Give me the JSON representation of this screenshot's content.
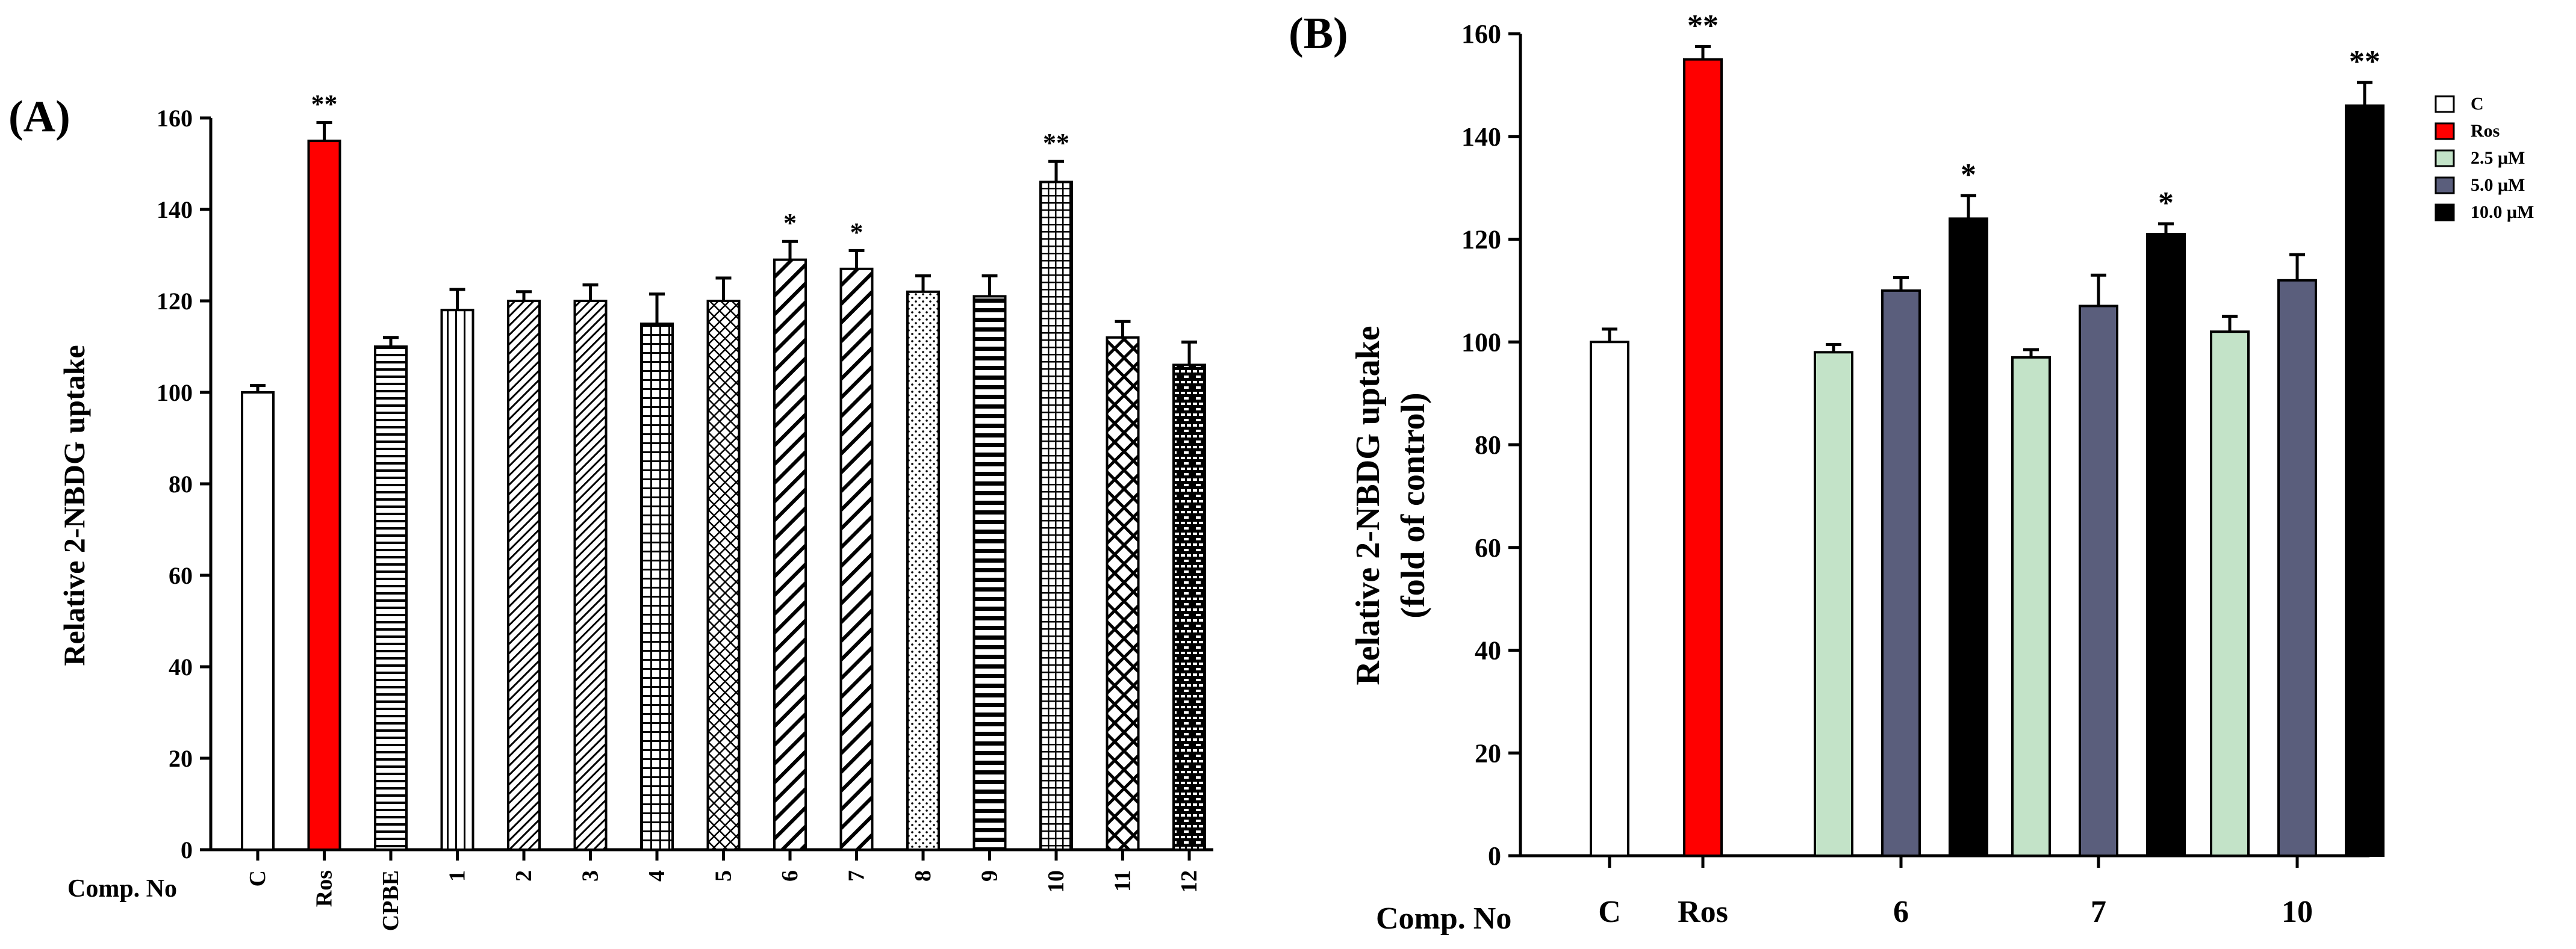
{
  "chart_data": [
    {
      "panel_label": "(A)",
      "type": "bar",
      "ylabel": "Relative 2-NBDG uptake",
      "xlabel": "Comp. No",
      "ylim": [
        0,
        160
      ],
      "yticks": [
        "0",
        "20",
        "40",
        "60",
        "80",
        "100",
        "120",
        "140",
        "160"
      ],
      "categories": [
        "C",
        "Ros",
        "CPBE",
        "1",
        "2",
        "3",
        "4",
        "5",
        "6",
        "7",
        "8",
        "9",
        "10",
        "11",
        "12"
      ],
      "values": [
        100,
        155,
        110,
        118,
        120,
        120,
        115,
        120,
        129,
        127,
        122,
        121,
        146,
        112,
        106
      ],
      "errors": [
        1.5,
        4,
        2,
        4.5,
        2,
        3.5,
        6.5,
        5,
        4,
        4,
        3.5,
        4.5,
        4.5,
        3.5,
        5
      ],
      "significance": [
        "",
        "**",
        "",
        "",
        "",
        "",
        "",
        "",
        "*",
        "*",
        "",
        "",
        "**",
        "",
        ""
      ],
      "fill_patterns": [
        "white",
        "red",
        "h-lines",
        "v-lines",
        "diag-fine",
        "diag-fine",
        "grid",
        "crosshatch",
        "diag-wide",
        "diag-wide",
        "dots",
        "h-thick",
        "grid-fine",
        "cross-x",
        "bricks"
      ]
    },
    {
      "panel_label": "(B)",
      "type": "bar",
      "ylabel": "Relative 2-NBDG uptake",
      "ylabel2": "(fold of control)",
      "xlabel": "Comp. No",
      "ylim": [
        0,
        160
      ],
      "yticks": [
        "0",
        "20",
        "40",
        "60",
        "80",
        "100",
        "120",
        "140",
        "160"
      ],
      "categories": [
        "C",
        "Ros",
        "6",
        "7",
        "10"
      ],
      "series": [
        {
          "name": "C",
          "color": "#ffffff",
          "values": [
            100,
            null,
            null,
            null,
            null
          ],
          "errors": [
            2.5,
            null,
            null,
            null,
            null
          ],
          "significance": [
            "",
            "",
            "",
            "",
            ""
          ]
        },
        {
          "name": "Ros",
          "color": "#ff0000",
          "values": [
            null,
            155,
            null,
            null,
            null
          ],
          "errors": [
            null,
            2.5,
            null,
            null,
            null
          ],
          "significance": [
            "",
            "**",
            "",
            "",
            ""
          ]
        },
        {
          "name": "2.5 μM",
          "color": "#c3e3c8",
          "values": [
            null,
            null,
            98,
            97,
            102
          ],
          "errors": [
            null,
            null,
            1.5,
            1.5,
            3
          ],
          "significance": [
            "",
            "",
            "",
            "",
            ""
          ]
        },
        {
          "name": "5.0 μM",
          "color": "#5a5e7c",
          "values": [
            null,
            null,
            110,
            107,
            112
          ],
          "errors": [
            null,
            null,
            2.5,
            6,
            5
          ],
          "significance": [
            "",
            "",
            "",
            "",
            ""
          ]
        },
        {
          "name": "10.0 μM",
          "color": "#000000",
          "values": [
            null,
            null,
            124,
            121,
            146
          ],
          "errors": [
            null,
            null,
            4.5,
            2,
            4.5
          ],
          "significance": [
            "",
            "",
            "*",
            "*",
            "**"
          ]
        }
      ],
      "legend_position": "top-right"
    }
  ]
}
